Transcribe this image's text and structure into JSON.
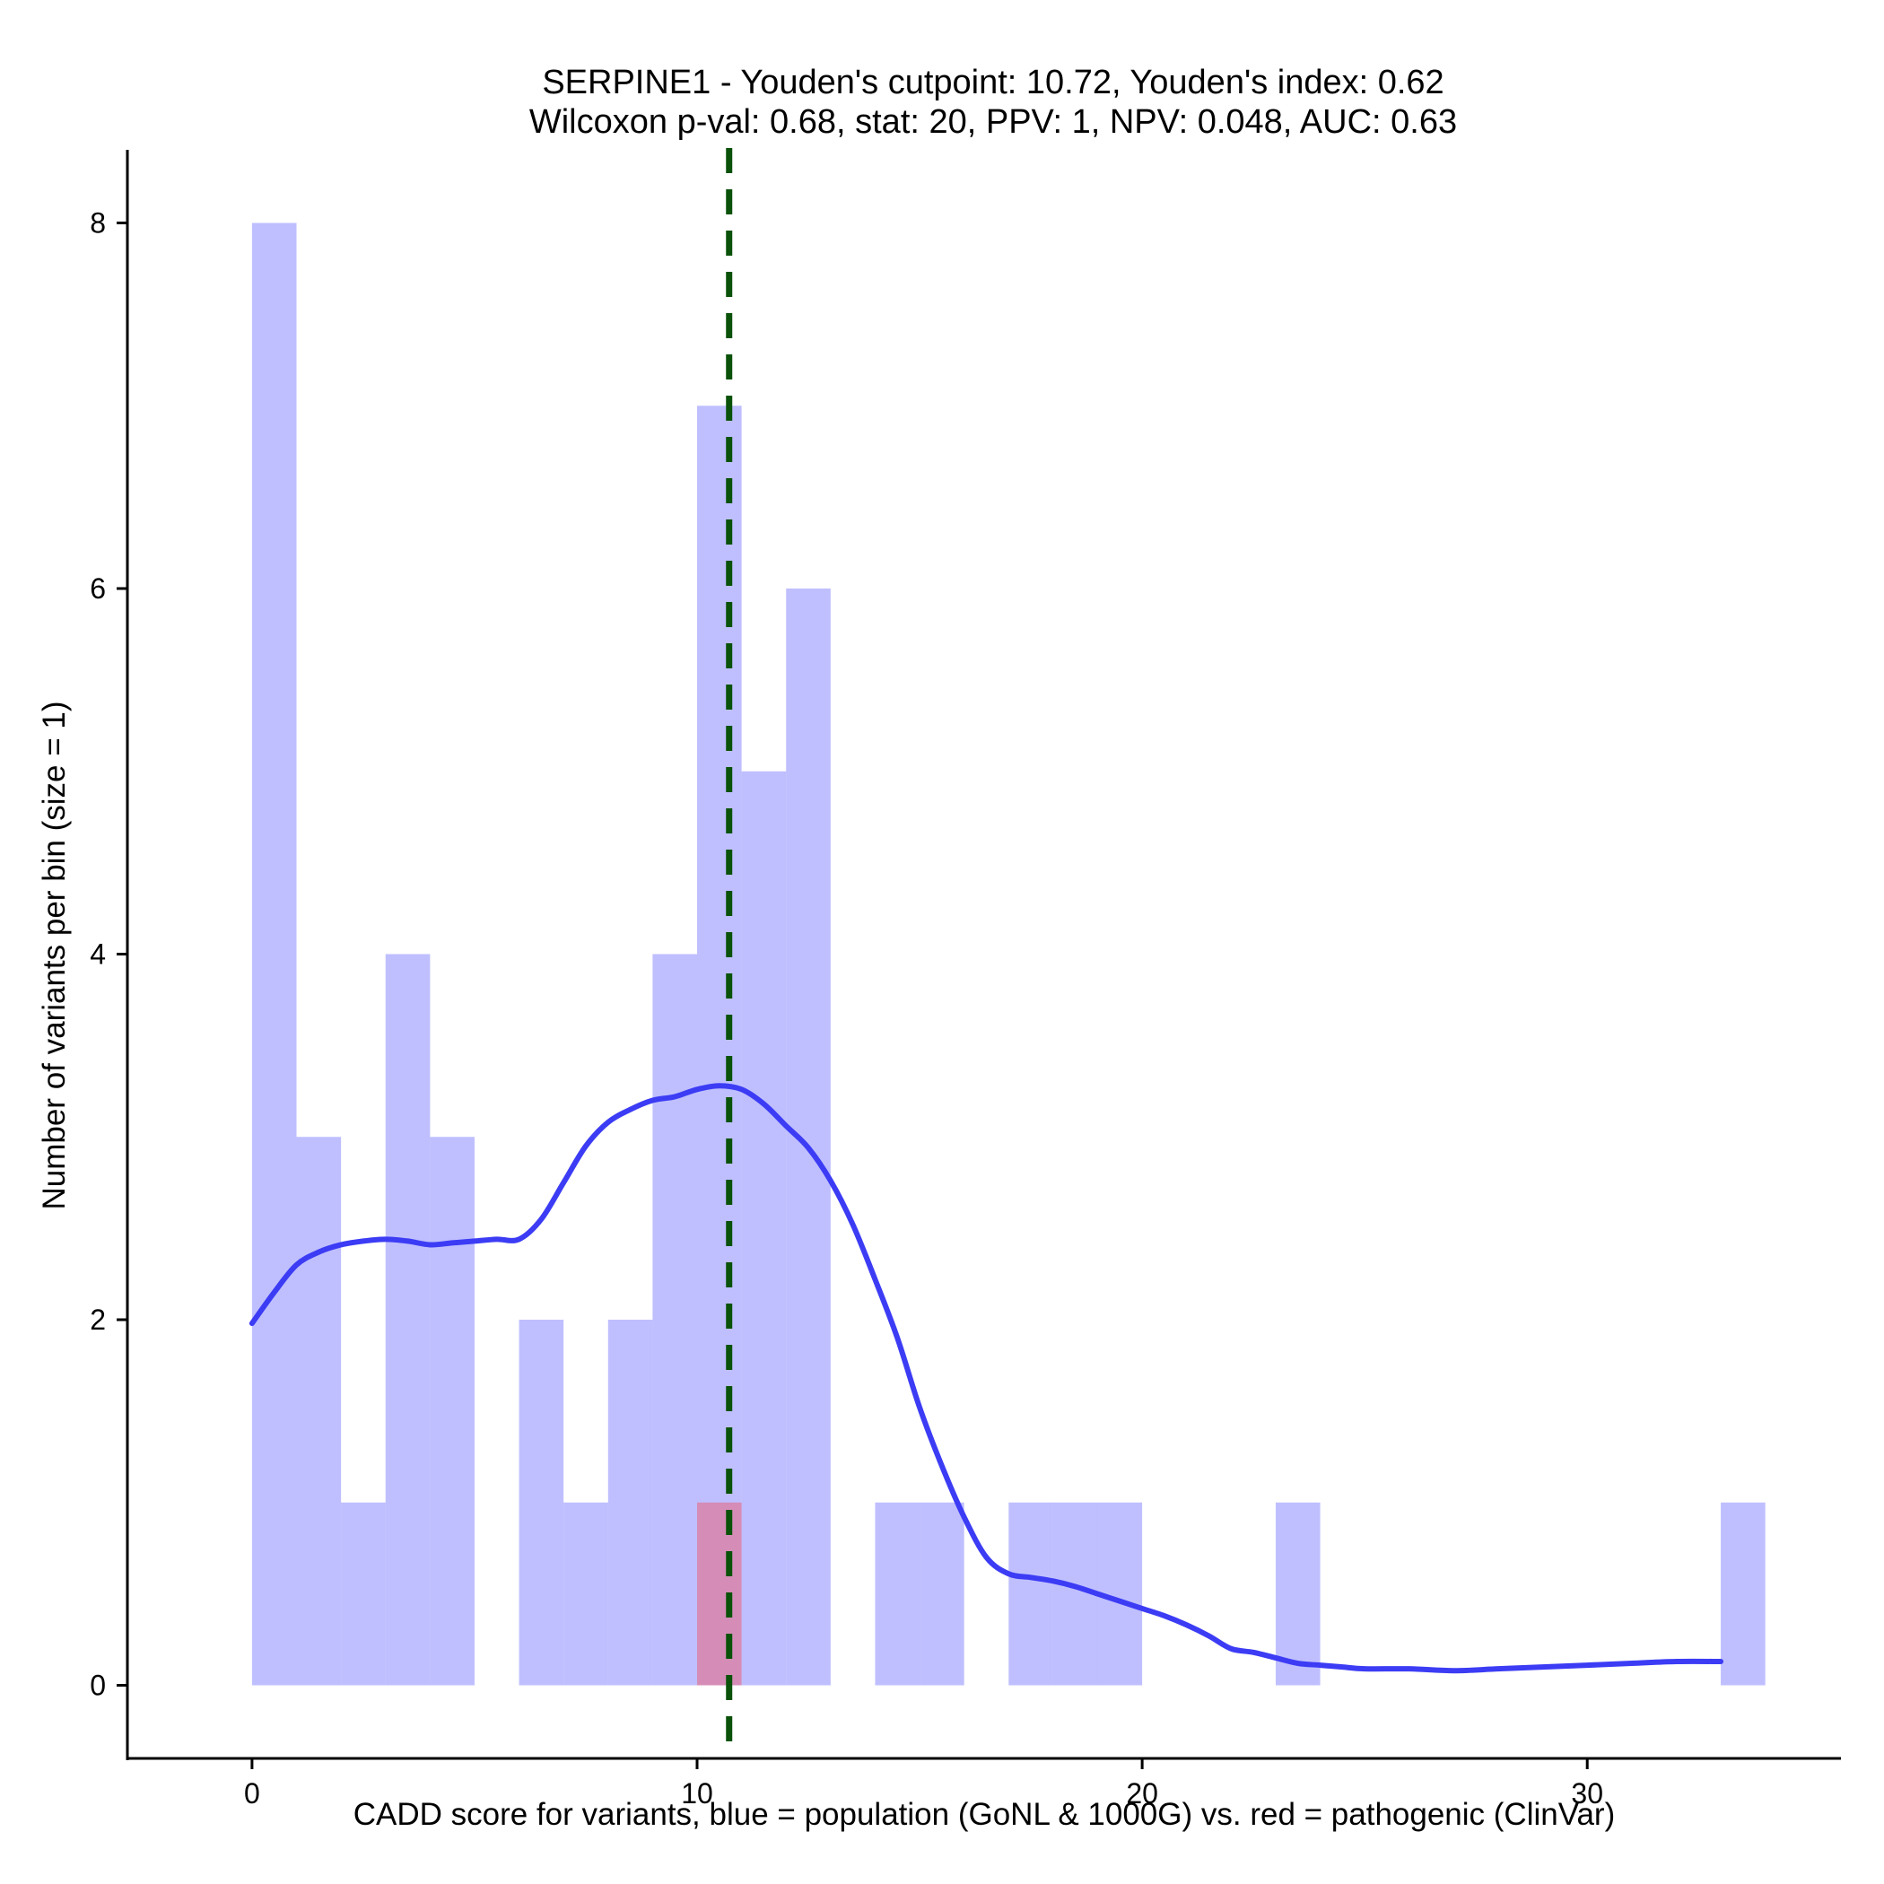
{
  "chart_data": {
    "type": "bar",
    "title_lines": [
      "SERPINE1 - Youden's cutpoint: 10.72, Youden's index: 0.62",
      "Wilcoxon p-val: 0.68, stat: 20, PPV: 1, NPV: 0.048, AUC: 0.63"
    ],
    "xlabel": "CADD score for variants, blue = population (GoNL & 1000G) vs. red = pathogenic (ClinVar)",
    "ylabel": "Number of variants per bin (size = 1)",
    "xlim": [
      -2.8,
      35.7
    ],
    "ylim": [
      -0.4,
      8.4
    ],
    "x_ticks": [
      0,
      10,
      20,
      30
    ],
    "x_tick_labels": [
      "0",
      "10",
      "20",
      "30"
    ],
    "y_ticks": [
      0,
      2,
      4,
      6,
      8
    ],
    "y_tick_labels": [
      "0",
      "2",
      "4",
      "6",
      "8"
    ],
    "bin_width": 1,
    "series": [
      {
        "name": "population (GoNL & 1000G)",
        "color": "#8080ff",
        "opacity": 0.5,
        "bins": [
          {
            "x0": 0,
            "count": 8
          },
          {
            "x0": 1,
            "count": 3
          },
          {
            "x0": 2,
            "count": 1
          },
          {
            "x0": 3,
            "count": 4
          },
          {
            "x0": 4,
            "count": 3
          },
          {
            "x0": 6,
            "count": 2
          },
          {
            "x0": 7,
            "count": 1
          },
          {
            "x0": 8,
            "count": 2
          },
          {
            "x0": 9,
            "count": 4
          },
          {
            "x0": 10,
            "count": 7
          },
          {
            "x0": 11,
            "count": 5
          },
          {
            "x0": 12,
            "count": 6
          },
          {
            "x0": 14,
            "count": 1
          },
          {
            "x0": 15,
            "count": 1
          },
          {
            "x0": 17,
            "count": 1
          },
          {
            "x0": 18,
            "count": 1
          },
          {
            "x0": 19,
            "count": 1
          },
          {
            "x0": 23,
            "count": 1
          },
          {
            "x0": 33,
            "count": 1
          }
        ]
      },
      {
        "name": "pathogenic (ClinVar)",
        "color": "#ff3030",
        "opacity": 0.35,
        "bins": [
          {
            "x0": 10,
            "count": 1
          }
        ]
      }
    ],
    "density_curve": {
      "name": "population density",
      "color": "#3c3cf5",
      "x": [
        0,
        0.5,
        1,
        1.5,
        2,
        2.5,
        3,
        3.5,
        4,
        4.5,
        5,
        5.5,
        6,
        6.5,
        7,
        7.5,
        8,
        8.5,
        9,
        9.5,
        10,
        10.5,
        11,
        11.5,
        12,
        12.5,
        13,
        13.5,
        14,
        14.5,
        15,
        15.5,
        16,
        16.5,
        17,
        17.5,
        18,
        18.5,
        19,
        19.5,
        20,
        20.5,
        21,
        21.5,
        22,
        22.5,
        23,
        23.5,
        24,
        24.5,
        25,
        26,
        27,
        28,
        29,
        30,
        31,
        32,
        33
      ],
      "y": [
        1.98,
        2.15,
        2.3,
        2.37,
        2.41,
        2.43,
        2.44,
        2.43,
        2.41,
        2.42,
        2.43,
        2.44,
        2.44,
        2.55,
        2.75,
        2.95,
        3.08,
        3.15,
        3.2,
        3.22,
        3.26,
        3.28,
        3.26,
        3.18,
        3.06,
        2.94,
        2.76,
        2.52,
        2.22,
        1.9,
        1.52,
        1.2,
        0.92,
        0.7,
        0.61,
        0.59,
        0.57,
        0.54,
        0.5,
        0.46,
        0.42,
        0.38,
        0.33,
        0.27,
        0.2,
        0.18,
        0.15,
        0.12,
        0.11,
        0.1,
        0.09,
        0.09,
        0.08,
        0.09,
        0.1,
        0.11,
        0.12,
        0.13,
        0.13
      ]
    },
    "cutpoint": {
      "x": 10.72,
      "color": "#0a5209",
      "style": "dashed"
    },
    "grid": false,
    "legend": "none"
  }
}
